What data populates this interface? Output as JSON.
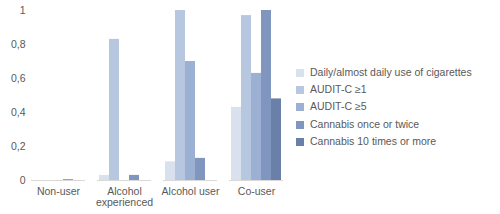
{
  "chart_data": {
    "type": "bar",
    "categories": [
      "Non-user",
      "Alcohol experienced",
      "Alcohol user",
      "Co-user"
    ],
    "series": [
      {
        "name": "Daily/almost daily use of cigarettes",
        "color": "#d9e1ef",
        "values": [
          0,
          0.03,
          0.11,
          0.43
        ]
      },
      {
        "name": "AUDIT-C ≥1",
        "color": "#b7c7e0",
        "values": [
          0,
          0.83,
          1.0,
          0.97
        ]
      },
      {
        "name": "AUDIT-C ≥5",
        "color": "#9cb0d3",
        "values": [
          0,
          0,
          0.7,
          0.63
        ]
      },
      {
        "name": "Cannabis once or twice",
        "color": "#8196bf",
        "values": [
          0.005,
          0.03,
          0.13,
          1.0
        ]
      },
      {
        "name": "Cannabis 10 times or more",
        "color": "#6b80a8",
        "values": [
          0,
          0,
          0,
          0.48
        ]
      }
    ],
    "ylim": [
      0,
      1
    ],
    "yticks": [
      0,
      {
        "value": 0.2,
        "label": "0,2"
      },
      {
        "value": 0.4,
        "label": "0,4"
      },
      {
        "value": 0.6,
        "label": "0,6"
      },
      {
        "value": 0.8,
        "label": "0,8"
      },
      1
    ],
    "grid": false,
    "legend": "right"
  }
}
